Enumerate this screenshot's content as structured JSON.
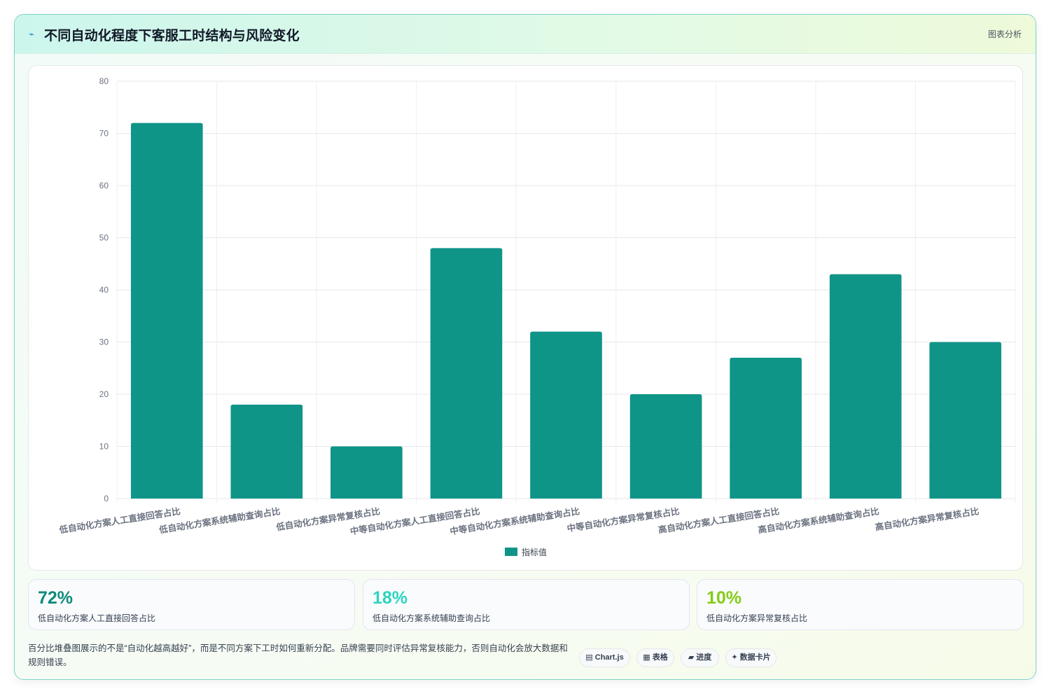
{
  "header": {
    "icon": "trend-icon",
    "title": "不同自动化程度下客服工时结构与风险变化",
    "tag": "图表分析"
  },
  "chart_data": {
    "type": "bar",
    "categories": [
      "低自动化方案人工直接回答占比",
      "低自动化方案系统辅助查询占比",
      "低自动化方案异常复核占比",
      "中等自动化方案人工直接回答占比",
      "中等自动化方案系统辅助查询占比",
      "中等自动化方案异常复核占比",
      "高自动化方案人工直接回答占比",
      "高自动化方案系统辅助查询占比",
      "高自动化方案异常复核占比"
    ],
    "series": [
      {
        "name": "指标值",
        "values": [
          72,
          18,
          10,
          48,
          32,
          20,
          27,
          43,
          30
        ],
        "color": "#0f9488"
      }
    ],
    "ylim": [
      0,
      80
    ],
    "yticks": [
      0,
      10,
      20,
      30,
      40,
      50,
      60,
      70,
      80
    ],
    "grid": true,
    "legend": "bottom"
  },
  "stats": [
    {
      "value": "72%",
      "label": "低自动化方案人工直接回答占比",
      "color": "#0f8a7a"
    },
    {
      "value": "18%",
      "label": "低自动化方案系统辅助查询占比",
      "color": "#2dd4bf"
    },
    {
      "value": "10%",
      "label": "低自动化方案异常复核占比",
      "color": "#84cc16"
    }
  ],
  "note": "百分比堆叠图展示的不是“自动化越高越好”，而是不同方案下工时如何重新分配。品牌需要同时评估异常复核能力，否则自动化会放大数据和规则错误。",
  "chips": [
    {
      "icon": "▤",
      "label": "Chart.js"
    },
    {
      "icon": "▦",
      "label": "表格"
    },
    {
      "icon": "▰",
      "label": "进度"
    },
    {
      "icon": "✦",
      "label": "数据卡片"
    }
  ]
}
